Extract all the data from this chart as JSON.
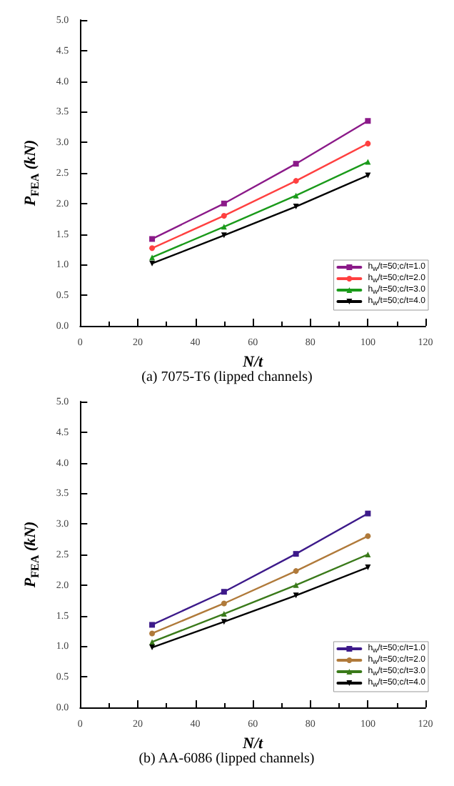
{
  "chart_data": [
    {
      "type": "line",
      "xlabel": "N/t",
      "ylabel": "P$_{FEA}$ (kN)",
      "x": [
        25,
        50,
        75,
        100
      ],
      "xlim": [
        0,
        120
      ],
      "xticks": [
        0,
        20,
        40,
        60,
        80,
        100,
        120
      ],
      "ylim": [
        0,
        5
      ],
      "yticks": [
        {
          "value": 0,
          "label": "0.0"
        },
        {
          "value": 0.5,
          "label": "0.5"
        },
        {
          "value": 1,
          "label": "1.0"
        },
        {
          "value": 1.5,
          "label": "1.5"
        },
        {
          "value": 2,
          "label": "2.0"
        },
        {
          "value": 2.5,
          "label": "2.5"
        },
        {
          "value": 3,
          "label": "3.0"
        },
        {
          "value": 3.5,
          "label": "3.5"
        },
        {
          "value": 4,
          "label": "4.0"
        },
        {
          "value": 4.5,
          "label": "4.5"
        },
        {
          "value": 5,
          "label": "5.0"
        }
      ],
      "grid": false,
      "legend": "bottom right",
      "line_style": "solid",
      "annotations": [
        "(a) 7075-T6 (lipped channels)"
      ],
      "series": [
        {
          "name": "h$_{w}$/t=50;c/t=1.0",
          "color": "#8b1a89",
          "marker": "square",
          "values": [
            1.42,
            2.0,
            2.65,
            3.35
          ]
        },
        {
          "name": "h$_{w}$/t=50;c/t=2.0",
          "color": "#ff4040",
          "marker": "circle",
          "values": [
            1.27,
            1.8,
            2.37,
            2.98
          ]
        },
        {
          "name": "h$_{w}$/t=50;c/t=3.0",
          "color": "#1a9a1a",
          "marker": "triangle",
          "values": [
            1.12,
            1.62,
            2.13,
            2.68
          ]
        },
        {
          "name": "h$_{w}$/t=50;c/t=4.0",
          "color": "#000000",
          "marker": "triangle-down",
          "values": [
            1.02,
            1.48,
            1.95,
            2.46
          ]
        }
      ]
    },
    {
      "type": "line",
      "xlabel": "N/t",
      "ylabel": "P$_{FEA}$ (kN)",
      "x": [
        25,
        50,
        75,
        100
      ],
      "xlim": [
        0,
        120
      ],
      "xticks": [
        0,
        20,
        40,
        60,
        80,
        100,
        120
      ],
      "ylim": [
        0,
        5
      ],
      "yticks": [
        {
          "value": 0,
          "label": "0.0"
        },
        {
          "value": 0.5,
          "label": "0.5"
        },
        {
          "value": 1,
          "label": "1.0"
        },
        {
          "value": 1.5,
          "label": "1.5"
        },
        {
          "value": 2,
          "label": "2.0"
        },
        {
          "value": 2.5,
          "label": "2.5"
        },
        {
          "value": 3,
          "label": "3.0"
        },
        {
          "value": 3.5,
          "label": "3.5"
        },
        {
          "value": 4,
          "label": "4.0"
        },
        {
          "value": 4.5,
          "label": "4.5"
        },
        {
          "value": 5,
          "label": "5.0"
        }
      ],
      "grid": false,
      "legend": "bottom right",
      "line_style": "solid",
      "annotations": [
        "(b) AA-6086 (lipped channels)"
      ],
      "series": [
        {
          "name": "h$_{w}$/t=50;c/t=1.0",
          "color": "#3d1a8a",
          "marker": "square",
          "values": [
            1.35,
            1.89,
            2.51,
            3.17
          ]
        },
        {
          "name": "h$_{w}$/t=50;c/t=2.0",
          "color": "#b07a3a",
          "marker": "circle",
          "values": [
            1.21,
            1.7,
            2.23,
            2.8
          ]
        },
        {
          "name": "h$_{w}$/t=50;c/t=3.0",
          "color": "#3a7a1a",
          "marker": "triangle",
          "values": [
            1.07,
            1.53,
            2.0,
            2.5
          ]
        },
        {
          "name": "h$_{w}$/t=50;c/t=4.0",
          "color": "#000000",
          "marker": "triangle-down",
          "values": [
            0.98,
            1.4,
            1.83,
            2.29
          ]
        }
      ]
    }
  ]
}
